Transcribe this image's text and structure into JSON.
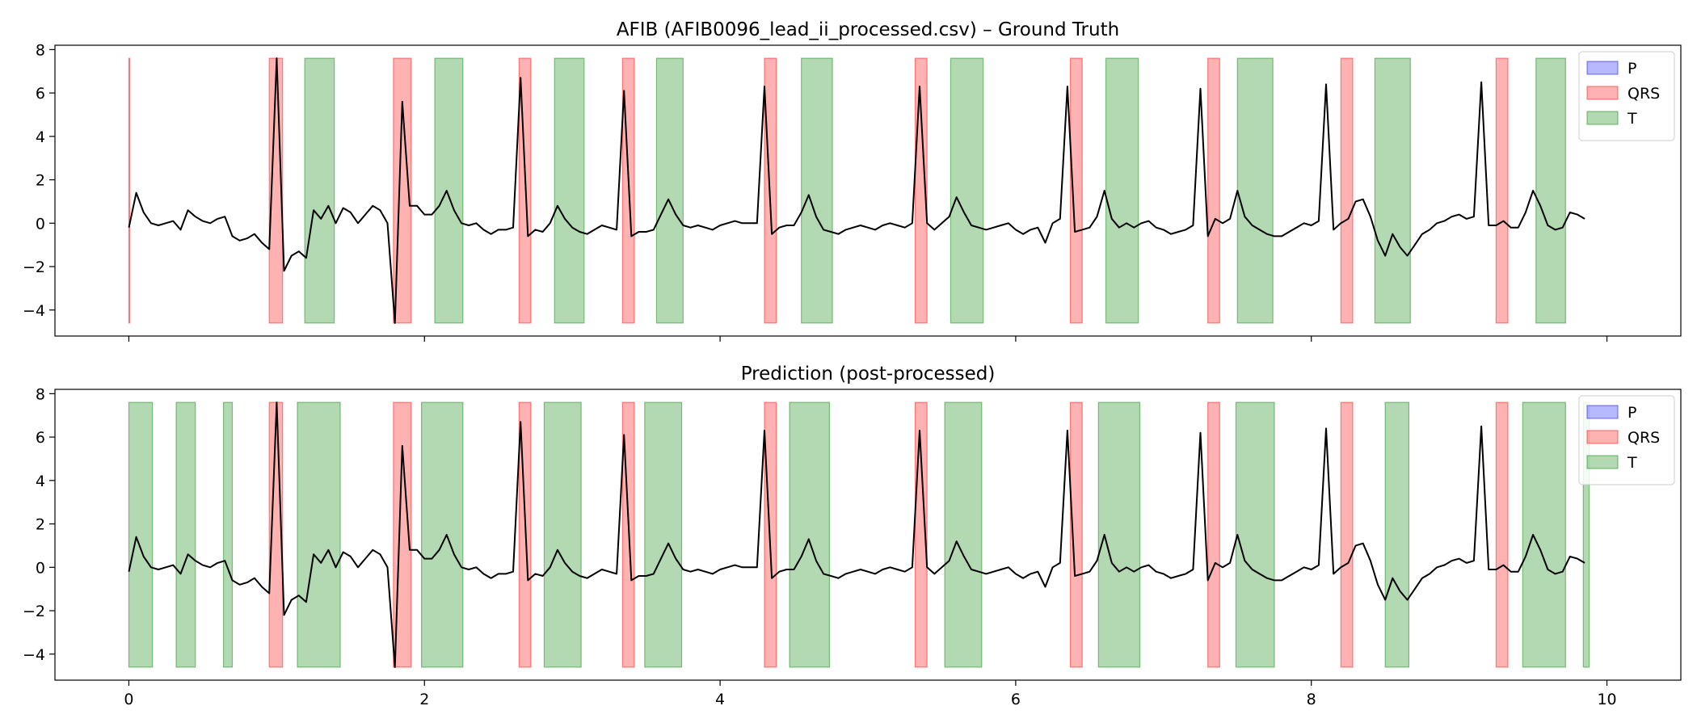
{
  "figure": {
    "colors": {
      "P": "#0000ff",
      "QRS": "#ff0000",
      "T": "#008000",
      "signal": "#000000"
    }
  },
  "chart_data": [
    {
      "type": "line",
      "title": "AFIB (AFIB0096_lead_ii_processed.csv) – Ground Truth",
      "xlim": [
        -0.5,
        10.5
      ],
      "ylim": [
        -5.2,
        8.2
      ],
      "x_ticks": [
        0,
        2,
        4,
        6,
        8,
        10
      ],
      "x_ticks_labeled": false,
      "y_ticks": [
        -4,
        -2,
        0,
        2,
        4,
        6,
        8
      ],
      "legend": {
        "placement": "top-right",
        "entries": [
          "P",
          "QRS",
          "T"
        ]
      },
      "band_range": [
        -4.6,
        7.6
      ],
      "segments": {
        "QRS": [
          [
            0.0,
            0.005
          ],
          [
            0.95,
            1.04
          ],
          [
            1.79,
            1.91
          ],
          [
            2.64,
            2.72
          ],
          [
            3.34,
            3.42
          ],
          [
            4.3,
            4.38
          ],
          [
            5.32,
            5.4
          ],
          [
            6.37,
            6.45
          ],
          [
            7.3,
            7.38
          ],
          [
            8.2,
            8.28
          ],
          [
            9.25,
            9.33
          ]
        ],
        "T": [
          [
            1.19,
            1.39
          ],
          [
            2.07,
            2.26
          ],
          [
            2.88,
            3.08
          ],
          [
            3.57,
            3.75
          ],
          [
            4.55,
            4.76
          ],
          [
            5.56,
            5.78
          ],
          [
            6.61,
            6.83
          ],
          [
            7.5,
            7.74
          ],
          [
            8.43,
            8.67
          ],
          [
            9.52,
            9.72
          ]
        ],
        "P": []
      },
      "signal_name": "lead II",
      "x_ticks_shown": true
    },
    {
      "type": "line",
      "title": "Prediction (post-processed)",
      "xlim": [
        -0.5,
        10.5
      ],
      "ylim": [
        -5.2,
        8.2
      ],
      "x_ticks": [
        0,
        2,
        4,
        6,
        8,
        10
      ],
      "x_ticks_labeled": true,
      "y_ticks": [
        -4,
        -2,
        0,
        2,
        4,
        6,
        8
      ],
      "legend": {
        "placement": "top-right",
        "entries": [
          "P",
          "QRS",
          "T"
        ]
      },
      "band_range": [
        -4.6,
        7.6
      ],
      "segments": {
        "QRS": [
          [
            0.95,
            1.04
          ],
          [
            1.79,
            1.91
          ],
          [
            2.64,
            2.72
          ],
          [
            3.34,
            3.42
          ],
          [
            4.3,
            4.38
          ],
          [
            5.32,
            5.4
          ],
          [
            6.37,
            6.45
          ],
          [
            7.3,
            7.38
          ],
          [
            8.2,
            8.28
          ],
          [
            9.25,
            9.33
          ]
        ],
        "T": [
          [
            0.0,
            0.16
          ],
          [
            0.32,
            0.45
          ],
          [
            0.64,
            0.7
          ],
          [
            1.14,
            1.43
          ],
          [
            1.98,
            2.26
          ],
          [
            2.81,
            3.06
          ],
          [
            3.49,
            3.74
          ],
          [
            4.47,
            4.74
          ],
          [
            5.52,
            5.77
          ],
          [
            6.56,
            6.84
          ],
          [
            7.49,
            7.75
          ],
          [
            8.5,
            8.66
          ],
          [
            9.43,
            9.72
          ],
          [
            9.84,
            9.88
          ]
        ],
        "P": []
      },
      "signal_name": "lead II"
    }
  ],
  "signal": {
    "x_start": 0,
    "x_step": 0.05,
    "y": [
      -0.2,
      1.4,
      0.5,
      0.0,
      -0.1,
      0.0,
      0.1,
      -0.3,
      0.6,
      0.3,
      0.1,
      0.0,
      0.2,
      0.3,
      -0.6,
      -0.8,
      -0.7,
      -0.5,
      -0.9,
      -1.2,
      7.6,
      -2.2,
      -1.5,
      -1.3,
      -1.6,
      0.6,
      0.2,
      0.8,
      0.0,
      0.7,
      0.5,
      0.0,
      0.4,
      0.8,
      0.6,
      0.0,
      -4.6,
      5.6,
      0.8,
      0.8,
      0.4,
      0.4,
      0.8,
      1.5,
      0.6,
      0.0,
      -0.1,
      0.0,
      -0.3,
      -0.5,
      -0.3,
      -0.3,
      -0.2,
      6.7,
      -0.6,
      -0.3,
      -0.4,
      0.0,
      0.8,
      0.2,
      -0.2,
      -0.4,
      -0.5,
      -0.3,
      -0.1,
      -0.2,
      -0.3,
      6.1,
      -0.6,
      -0.4,
      -0.4,
      -0.3,
      0.4,
      1.1,
      0.4,
      -0.1,
      -0.2,
      -0.1,
      -0.2,
      -0.3,
      -0.1,
      0.0,
      0.1,
      0.0,
      0.0,
      0.0,
      6.3,
      -0.5,
      -0.2,
      -0.1,
      -0.1,
      0.5,
      1.3,
      0.3,
      -0.3,
      -0.4,
      -0.5,
      -0.3,
      -0.2,
      -0.1,
      -0.2,
      -0.3,
      -0.1,
      0.0,
      -0.1,
      -0.2,
      0.0,
      6.3,
      0.0,
      -0.3,
      0.0,
      0.3,
      1.2,
      0.5,
      -0.1,
      -0.2,
      -0.3,
      -0.2,
      -0.1,
      0.0,
      -0.3,
      -0.5,
      -0.3,
      -0.2,
      -0.9,
      0.0,
      0.2,
      6.3,
      -0.4,
      -0.3,
      -0.2,
      0.3,
      1.5,
      0.2,
      -0.2,
      0.0,
      -0.2,
      0.0,
      0.1,
      -0.2,
      -0.3,
      -0.5,
      -0.4,
      -0.3,
      -0.1,
      6.2,
      -0.6,
      0.2,
      0.0,
      0.2,
      1.5,
      0.3,
      -0.1,
      -0.3,
      -0.5,
      -0.6,
      -0.6,
      -0.4,
      -0.2,
      0.0,
      -0.1,
      0.1,
      6.4,
      -0.3,
      0.0,
      0.2,
      1.0,
      1.1,
      0.3,
      -0.8,
      -1.5,
      -0.5,
      -1.1,
      -1.5,
      -1.0,
      -0.5,
      -0.3,
      0.0,
      0.1,
      0.3,
      0.4,
      0.2,
      0.3,
      6.5,
      -0.1,
      -0.1,
      0.1,
      -0.2,
      -0.2,
      0.5,
      1.5,
      0.8,
      -0.1,
      -0.3,
      -0.2,
      0.5,
      0.4,
      0.2
    ]
  }
}
